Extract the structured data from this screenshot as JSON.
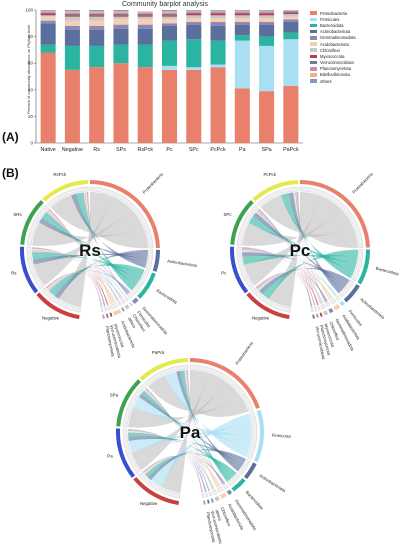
{
  "panels": {
    "a_label": "(A)",
    "b_label": "(B)"
  },
  "chart_title": "Community barplot analysis",
  "chart_data": [
    {
      "type": "bar",
      "stacked": true,
      "title": "Community barplot analysis",
      "ylabel": "Percent of community abundance on Phylum level",
      "xlabel": "",
      "ylim": [
        0,
        100
      ],
      "yticks": [
        0,
        20,
        40,
        60,
        80,
        100
      ],
      "legend_position": "right",
      "categories": [
        "Native",
        "Negative",
        "Rs",
        "SPs",
        "RsPck",
        "Pc",
        "SPc",
        "PcPck",
        "Pa",
        "SPa",
        "PaPck"
      ],
      "series": [
        {
          "name": "Proteobacteria",
          "color": "#e8806b",
          "values": [
            68,
            55,
            57,
            60,
            57,
            55,
            55,
            57,
            41,
            39,
            43
          ]
        },
        {
          "name": "Firmicutes",
          "color": "#a9dff2",
          "values": [
            0,
            0,
            0,
            0,
            0,
            3,
            2,
            2,
            36,
            34,
            35
          ]
        },
        {
          "name": "Bacteroidota",
          "color": "#2bb5a0",
          "values": [
            6,
            18,
            16,
            14,
            17,
            19,
            21,
            18,
            4,
            7,
            5
          ]
        },
        {
          "name": "Actinobacteriota",
          "color": "#5b6f9c",
          "values": [
            16,
            12,
            12,
            12,
            12,
            11,
            11,
            11,
            8,
            9,
            8
          ]
        },
        {
          "name": "Gemmatimonadota",
          "color": "#8f86b8",
          "values": [
            2,
            3,
            3,
            3,
            3,
            2,
            2,
            3,
            2,
            2,
            2
          ]
        },
        {
          "name": "Acidobacteriota",
          "color": "#f3cfb3",
          "values": [
            3,
            4,
            4,
            4,
            4,
            3,
            3,
            3,
            3,
            3,
            2
          ]
        },
        {
          "name": "Chloroflexi",
          "color": "#c8c8c8",
          "values": [
            1,
            3,
            3,
            2,
            2,
            2,
            2,
            2,
            2,
            2,
            2
          ]
        },
        {
          "name": "Myxococcota",
          "color": "#c33a3a",
          "values": [
            1,
            1,
            1,
            1,
            1,
            1,
            1,
            1,
            1,
            1,
            1
          ]
        },
        {
          "name": "Verrucomicrobiota",
          "color": "#6b7d9c",
          "values": [
            1,
            1,
            1,
            1,
            1,
            1,
            1,
            1,
            1,
            1,
            1
          ]
        },
        {
          "name": "Planctomycetota",
          "color": "#d38bb5",
          "values": [
            1,
            1,
            1,
            1,
            1,
            1,
            1,
            1,
            1,
            1,
            0.5
          ]
        },
        {
          "name": "Bdellovibrionota",
          "color": "#f2b183",
          "values": [
            0.5,
            1,
            1,
            1,
            1,
            1,
            0.5,
            0.5,
            0.5,
            0.5,
            0.5
          ]
        },
        {
          "name": "others",
          "color": "#7f9ac7",
          "values": [
            0.5,
            1,
            1,
            1,
            0,
            1,
            0.5,
            0.5,
            0.5,
            0.5,
            0
          ]
        }
      ]
    },
    {
      "type": "chord",
      "center_label": "Rs",
      "samples": [
        "Rs",
        "SRs",
        "RsPck",
        "Negative"
      ],
      "sample_colors": [
        "#3a4fcf",
        "#3fa34d",
        "#e3ea4a",
        "#c94040"
      ],
      "taxa": [
        "Proteobacteria",
        "Actinobacteriota",
        "Bacteroidota",
        "Gemmatimonadota",
        "Firmicutes",
        "Chloroflexi",
        "others",
        "Acidobacteriota",
        "Myxococcota",
        "Verrucomicrobiota",
        "Planctomycetota"
      ],
      "taxon_values": [
        58,
        12,
        16,
        3,
        1,
        2,
        1,
        4,
        1,
        1,
        1
      ]
    },
    {
      "type": "chord",
      "center_label": "Pc",
      "samples": [
        "Pc",
        "SPc",
        "PcPck",
        "Negative"
      ],
      "sample_colors": [
        "#3a4fcf",
        "#3fa34d",
        "#e3ea4a",
        "#c94040"
      ],
      "taxa": [
        "Proteobacteria",
        "Bacteroidota",
        "Actinobacteriota",
        "Firmicutes",
        "Acidobacteriota",
        "Gemmatimonadota",
        "Chloroflexi",
        "Myxococcota",
        "Planctomycetota",
        "Verrucomicrobiota"
      ],
      "taxon_values": [
        56,
        19,
        11,
        2,
        3,
        2,
        2,
        1,
        1,
        1
      ]
    },
    {
      "type": "chord",
      "center_label": "Pa",
      "samples": [
        "Pa",
        "SPa",
        "PaPck",
        "Negative"
      ],
      "sample_colors": [
        "#3a4fcf",
        "#3fa34d",
        "#e3ea4a",
        "#c94040"
      ],
      "taxa": [
        "Proteobacteria",
        "Firmicutes",
        "Actinobacteriota",
        "Bacteroidota",
        "Gemmatimonadota",
        "Acidobacteriota",
        "Chloroflexi",
        "others",
        "Verrucomicrobiota",
        "Planctomycetota"
      ],
      "taxon_values": [
        46,
        27,
        9,
        8,
        2,
        3,
        2,
        1,
        1,
        1
      ]
    }
  ]
}
